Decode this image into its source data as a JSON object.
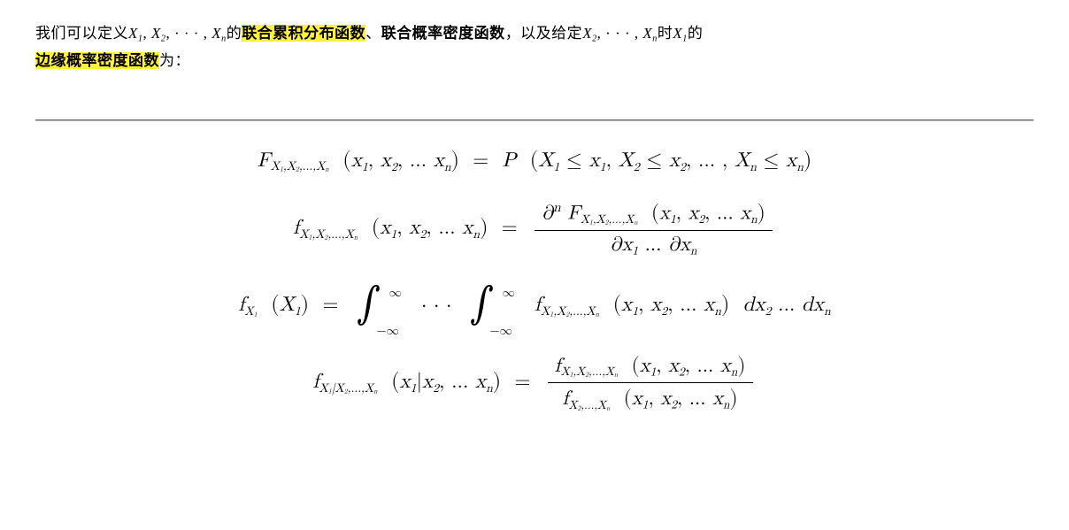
{
  "colors": {
    "highlight": "#fff03a",
    "text": "#000000",
    "background": "#ffffff",
    "hr_dark": "#696969",
    "hr_mid": "#b8b8b8"
  },
  "typography": {
    "body_fontsize_pt": 13,
    "math_fontsize_pt": 17,
    "line_height": 1.8,
    "font_family_body": "Times New Roman / SimSun",
    "font_family_math": "Latin Modern Math / Cambria Math"
  },
  "intro": {
    "parts": [
      {
        "t": "我们可以定义"
      },
      {
        "t": "X",
        "italic": true
      },
      {
        "t": "1",
        "sub": true
      },
      {
        "t": ", "
      },
      {
        "t": "X",
        "italic": true
      },
      {
        "t": "2",
        "sub": true
      },
      {
        "t": ", · · · , "
      },
      {
        "t": "X",
        "italic": true
      },
      {
        "t": "n",
        "sub": true
      },
      {
        "t": "的"
      },
      {
        "t": "联合累积分布函数",
        "hl": true,
        "bold": true
      },
      {
        "t": "、"
      },
      {
        "t": "联合概率密度函数",
        "bold": true
      },
      {
        "t": "，以及给定"
      },
      {
        "t": "X",
        "italic": true
      },
      {
        "t": "2",
        "sub": true
      },
      {
        "t": ", · · · , "
      },
      {
        "t": "X",
        "italic": true
      },
      {
        "t": "n",
        "sub": true
      },
      {
        "t": "时"
      },
      {
        "t": "X",
        "italic": true
      },
      {
        "t": "1",
        "sub": true
      },
      {
        "t": "的"
      },
      {
        "t": "边缘概率密度函数",
        "hl": true,
        "bold": true
      },
      {
        "t": "为："
      }
    ]
  },
  "equations": {
    "eq1": {
      "lhs_fn": "F",
      "lhs_subidx": "X₁,X₂,…,Xₙ",
      "lhs_args": "x₁, x₂, … xₙ",
      "rhs_prefix": "P",
      "rhs_body": "X₁ ≤ x₁, X₂ ≤ x₂, … , Xₙ ≤ xₙ"
    },
    "eq2": {
      "lhs_fn": "f",
      "lhs_subidx": "X₁,X₂,…,Xₙ",
      "lhs_args": "x₁, x₂, … xₙ",
      "num_prefix": "∂ⁿ",
      "num_fn": "F",
      "num_subidx": "X₁,X₂,…,Xₙ",
      "num_args": "x₁, x₂, … xₙ",
      "den": "∂x₁ … ∂xₙ"
    },
    "eq3": {
      "lhs_fn": "f",
      "lhs_subidx": "X₁",
      "lhs_args": "X₁",
      "int_lower": "−∞",
      "int_upper": "∞",
      "mid_dots": "· · ·",
      "integrand_fn": "f",
      "integrand_subidx": "X₁,X₂,…,Xₙ",
      "integrand_args": "x₁, x₂, … xₙ",
      "diffs": "dx₂ … dxₙ"
    },
    "eq4": {
      "lhs_fn": "f",
      "lhs_subidx": "X₁|X₂,…,Xₙ",
      "lhs_args": "x₁|x₂, … xₙ",
      "num_fn": "f",
      "num_subidx": "X₁,X₂,…,Xₙ",
      "num_args": "x₁, x₂, … xₙ",
      "den_fn": "f",
      "den_subidx": "X₂,…,Xₙ",
      "den_args": "x₁, x₂, … xₙ"
    }
  }
}
